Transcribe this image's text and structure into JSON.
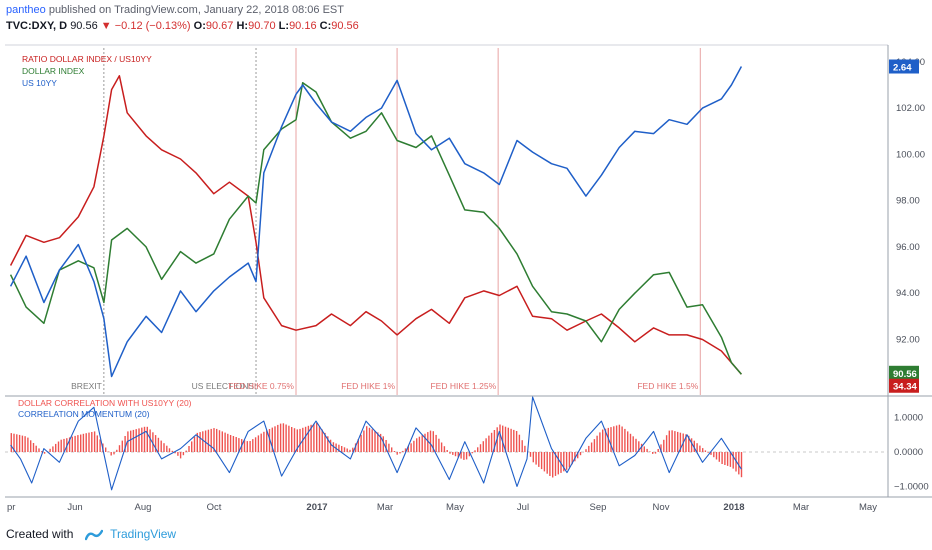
{
  "header": {
    "author": "pantheo",
    "published_text": " published on TradingView.com, January 22, 2018 08:06 EST",
    "symbol": "TVC:DXY, D",
    "last": "90.56",
    "change": "−0.12 (−0.13%)",
    "o_label": "O:",
    "o_value": "90.67",
    "h_label": "H:",
    "h_value": "90.70",
    "l_label": "L:",
    "l_value": "90.16",
    "c_label": "C:",
    "c_value": "90.56"
  },
  "footer": {
    "created_with": "Created with",
    "brand": "TradingView"
  },
  "colors": {
    "red": "#c81e1e",
    "green": "#2e7d32",
    "blue": "#1f5fc8",
    "vline": "#e8a3a3",
    "hist": "#ef5350"
  },
  "chart_data": [
    {
      "type": "line",
      "title": "",
      "legend": [
        "RATIO DOLLAR INDEX / US10YY",
        "DOLLAR INDEX",
        "US 10YY"
      ],
      "legend_position": "top-left",
      "x_ticks": [
        "pr",
        "Jun",
        "Aug",
        "Oct",
        "2017",
        "Mar",
        "May",
        "Jul",
        "Sep",
        "Nov",
        "2018",
        "Mar",
        "May"
      ],
      "y_ticks": [
        "104.00",
        "102.00",
        "100.00",
        "98.00",
        "96.00",
        "94.00",
        "92.00"
      ],
      "ylim": [
        89.6,
        104.6
      ],
      "annotations": [
        {
          "label": "BREXIT",
          "color": "#7a7a7a",
          "x": "2016-06-24"
        },
        {
          "label": "US ELECTIONS",
          "color": "#7a7a7a",
          "x": "2016-11-08"
        },
        {
          "label": "FED HIKE 0.75%",
          "color": "#e07070",
          "x": "2016-12-14"
        },
        {
          "label": "FED HIKE 1%",
          "color": "#e07070",
          "x": "2017-03-15"
        },
        {
          "label": "FED HIKE 1.25%",
          "color": "#e07070",
          "x": "2017-06-14"
        },
        {
          "label": "FED HIKE 1.5%",
          "color": "#e07070",
          "x": "2017-12-13"
        }
      ],
      "price_labels": [
        {
          "value": "2.64",
          "color": "#1f5fc8",
          "y": 103.8
        },
        {
          "value": "90.56",
          "color": "#2e7d32",
          "y": 90.56
        },
        {
          "value": "34.34",
          "color": "#c81e1e",
          "y": 90.0
        }
      ],
      "series": [
        {
          "name": "RATIO DOLLAR INDEX / US10YY",
          "color": "#c81e1e",
          "x": [
            "2016-04-01",
            "2016-04-15",
            "2016-05-01",
            "2016-05-15",
            "2016-06-01",
            "2016-06-15",
            "2016-06-24",
            "2016-07-01",
            "2016-07-08",
            "2016-07-15",
            "2016-08-01",
            "2016-08-15",
            "2016-09-01",
            "2016-09-15",
            "2016-10-01",
            "2016-10-15",
            "2016-11-01",
            "2016-11-08",
            "2016-11-15",
            "2016-12-01",
            "2016-12-14",
            "2017-01-01",
            "2017-01-15",
            "2017-02-01",
            "2017-02-15",
            "2017-03-01",
            "2017-03-15",
            "2017-04-01",
            "2017-04-15",
            "2017-05-01",
            "2017-05-15",
            "2017-06-01",
            "2017-06-15",
            "2017-07-01",
            "2017-07-15",
            "2017-08-01",
            "2017-08-15",
            "2017-09-01",
            "2017-09-15",
            "2017-10-01",
            "2017-10-15",
            "2017-11-01",
            "2017-11-15",
            "2017-12-01",
            "2017-12-15",
            "2018-01-01",
            "2018-01-10",
            "2018-01-19"
          ],
          "values": [
            95.2,
            96.5,
            96.2,
            96.4,
            97.3,
            98.6,
            100.8,
            102.8,
            103.4,
            101.8,
            100.8,
            100.2,
            99.8,
            99.2,
            98.3,
            98.8,
            98.2,
            96.2,
            93.8,
            92.6,
            92.4,
            92.6,
            93.1,
            92.6,
            93.2,
            92.8,
            92.2,
            92.9,
            93.3,
            92.7,
            93.8,
            94.1,
            93.9,
            94.3,
            93.0,
            92.9,
            92.4,
            92.8,
            93.1,
            92.5,
            91.9,
            92.5,
            92.2,
            92.2,
            92.0,
            91.5,
            91.0,
            90.5
          ]
        },
        {
          "name": "DOLLAR INDEX",
          "color": "#2e7d32",
          "x": [
            "2016-04-01",
            "2016-04-15",
            "2016-05-01",
            "2016-05-15",
            "2016-06-01",
            "2016-06-15",
            "2016-06-24",
            "2016-07-01",
            "2016-07-15",
            "2016-08-01",
            "2016-08-15",
            "2016-09-01",
            "2016-09-15",
            "2016-10-01",
            "2016-10-15",
            "2016-11-01",
            "2016-11-08",
            "2016-11-15",
            "2016-12-01",
            "2016-12-14",
            "2016-12-20",
            "2017-01-01",
            "2017-01-15",
            "2017-02-01",
            "2017-02-15",
            "2017-03-01",
            "2017-03-15",
            "2017-04-01",
            "2017-04-15",
            "2017-05-01",
            "2017-05-15",
            "2017-06-01",
            "2017-06-15",
            "2017-07-01",
            "2017-07-15",
            "2017-08-01",
            "2017-08-15",
            "2017-09-01",
            "2017-09-15",
            "2017-10-01",
            "2017-10-15",
            "2017-11-01",
            "2017-11-15",
            "2017-12-01",
            "2017-12-15",
            "2018-01-01",
            "2018-01-10",
            "2018-01-19"
          ],
          "values": [
            94.8,
            93.4,
            92.7,
            95.0,
            95.4,
            95.1,
            93.6,
            96.3,
            96.8,
            96.0,
            94.6,
            95.8,
            95.3,
            95.7,
            97.2,
            98.2,
            97.9,
            100.2,
            101.1,
            101.5,
            103.1,
            102.7,
            101.4,
            100.7,
            101.0,
            101.8,
            100.6,
            100.3,
            100.8,
            99.1,
            97.6,
            97.5,
            96.8,
            95.7,
            94.3,
            93.2,
            93.1,
            92.8,
            91.9,
            93.3,
            94.0,
            94.8,
            94.9,
            93.4,
            93.5,
            92.1,
            91.0,
            90.5
          ]
        },
        {
          "name": "US 10YY",
          "color": "#1f5fc8",
          "x": [
            "2016-04-01",
            "2016-04-15",
            "2016-05-01",
            "2016-05-15",
            "2016-06-01",
            "2016-06-15",
            "2016-06-24",
            "2016-07-01",
            "2016-07-15",
            "2016-08-01",
            "2016-08-15",
            "2016-09-01",
            "2016-09-15",
            "2016-10-01",
            "2016-10-15",
            "2016-11-01",
            "2016-11-08",
            "2016-11-15",
            "2016-12-01",
            "2016-12-14",
            "2016-12-20",
            "2017-01-01",
            "2017-01-15",
            "2017-02-01",
            "2017-02-15",
            "2017-03-01",
            "2017-03-15",
            "2017-04-01",
            "2017-04-15",
            "2017-05-01",
            "2017-05-15",
            "2017-06-01",
            "2017-06-15",
            "2017-07-01",
            "2017-07-15",
            "2017-08-01",
            "2017-08-15",
            "2017-09-01",
            "2017-09-15",
            "2017-10-01",
            "2017-10-15",
            "2017-11-01",
            "2017-11-15",
            "2017-12-01",
            "2017-12-15",
            "2018-01-01",
            "2018-01-10",
            "2018-01-19"
          ],
          "values": [
            94.3,
            95.6,
            93.6,
            95.0,
            96.1,
            94.5,
            92.9,
            90.4,
            91.9,
            93.0,
            92.3,
            94.1,
            93.2,
            94.1,
            94.7,
            95.3,
            94.5,
            99.2,
            101.2,
            102.6,
            103.0,
            102.2,
            101.4,
            101.0,
            101.6,
            102.0,
            103.2,
            100.9,
            100.2,
            100.7,
            99.6,
            99.2,
            98.7,
            100.6,
            100.1,
            99.6,
            99.4,
            98.2,
            99.1,
            100.3,
            101.0,
            100.9,
            101.5,
            101.3,
            102.0,
            102.4,
            103.0,
            103.8
          ]
        }
      ]
    },
    {
      "type": "bar",
      "title": "",
      "legend": [
        "DOLLAR CORRELATION WITH US10YY (20)",
        "CORRELATION MOMENTUM (20)"
      ],
      "legend_position": "top-left",
      "y_ticks": [
        "1.0000",
        "0.0000",
        "−1.0000"
      ],
      "ylim": [
        -1.25,
        1.6
      ],
      "series": [
        {
          "name": "DOLLAR CORRELATION WITH US10YY (20)",
          "color": "#ef5350",
          "kind": "histogram",
          "x": [
            "2016-04-01",
            "2016-04-15",
            "2016-05-01",
            "2016-05-15",
            "2016-06-01",
            "2016-06-15",
            "2016-07-01",
            "2016-07-15",
            "2016-08-01",
            "2016-08-15",
            "2016-09-01",
            "2016-09-15",
            "2016-10-01",
            "2016-10-15",
            "2016-11-01",
            "2016-11-15",
            "2016-12-01",
            "2016-12-15",
            "2017-01-01",
            "2017-01-15",
            "2017-02-01",
            "2017-02-15",
            "2017-03-01",
            "2017-03-15",
            "2017-04-01",
            "2017-04-15",
            "2017-05-01",
            "2017-05-15",
            "2017-06-01",
            "2017-06-15",
            "2017-07-01",
            "2017-07-15",
            "2017-08-01",
            "2017-08-15",
            "2017-09-01",
            "2017-09-15",
            "2017-10-01",
            "2017-10-15",
            "2017-11-01",
            "2017-11-15",
            "2017-12-01",
            "2017-12-15",
            "2018-01-01",
            "2018-01-10",
            "2018-01-19"
          ],
          "values": [
            0.55,
            0.45,
            -0.05,
            0.35,
            0.5,
            0.6,
            -0.15,
            0.6,
            0.75,
            0.3,
            -0.2,
            0.55,
            0.7,
            0.5,
            0.3,
            0.6,
            0.85,
            0.65,
            0.85,
            0.3,
            0.05,
            0.75,
            0.5,
            -0.1,
            0.4,
            0.65,
            -0.05,
            -0.25,
            0.35,
            0.8,
            0.6,
            -0.3,
            -0.75,
            -0.5,
            0.1,
            0.65,
            0.8,
            0.4,
            -0.1,
            0.65,
            0.5,
            0.1,
            -0.35,
            -0.45,
            -0.75
          ]
        },
        {
          "name": "CORRELATION MOMENTUM (20)",
          "color": "#1f5fc8",
          "kind": "line",
          "x": [
            "2016-04-01",
            "2016-04-10",
            "2016-04-20",
            "2016-05-01",
            "2016-05-15",
            "2016-06-01",
            "2016-06-15",
            "2016-07-01",
            "2016-07-15",
            "2016-08-01",
            "2016-08-15",
            "2016-09-01",
            "2016-09-15",
            "2016-10-01",
            "2016-10-15",
            "2016-11-01",
            "2016-11-15",
            "2016-12-01",
            "2016-12-15",
            "2017-01-01",
            "2017-01-15",
            "2017-02-01",
            "2017-02-15",
            "2017-03-01",
            "2017-03-15",
            "2017-04-01",
            "2017-04-15",
            "2017-05-01",
            "2017-05-15",
            "2017-06-01",
            "2017-06-15",
            "2017-07-01",
            "2017-07-10",
            "2017-07-15",
            "2017-08-01",
            "2017-08-15",
            "2017-09-01",
            "2017-09-15",
            "2017-10-01",
            "2017-10-15",
            "2017-11-01",
            "2017-11-15",
            "2017-12-01",
            "2017-12-15",
            "2018-01-01",
            "2018-01-19"
          ],
          "values": [
            0.2,
            -0.2,
            -0.9,
            0.1,
            -0.3,
            0.9,
            1.3,
            -1.1,
            0.3,
            0.6,
            -0.2,
            0.1,
            0.5,
            0.1,
            -0.6,
            0.6,
            0.9,
            -0.7,
            0.1,
            0.9,
            0.2,
            -0.2,
            0.9,
            0.4,
            -0.6,
            0.7,
            0.2,
            -0.8,
            0.3,
            -0.9,
            0.6,
            -1.0,
            -0.2,
            1.6,
            0.1,
            -0.6,
            0.4,
            0.9,
            -0.4,
            -0.1,
            0.6,
            -0.6,
            0.5,
            -0.3,
            0.4,
            -0.5
          ]
        }
      ]
    }
  ]
}
